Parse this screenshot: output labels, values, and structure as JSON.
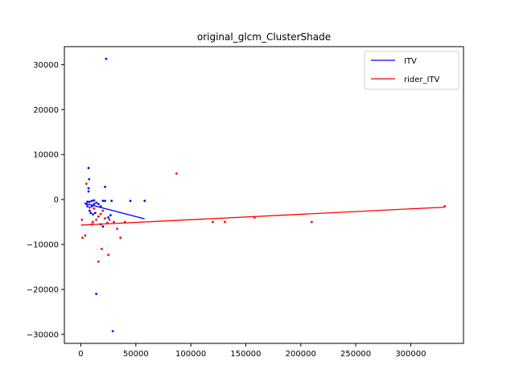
{
  "chart_data": {
    "type": "scatter",
    "title": "original_glcm_ClusterShade",
    "xlabel": "",
    "ylabel": "",
    "xlim": [
      -15000,
      348000
    ],
    "ylim": [
      -32000,
      34000
    ],
    "xticks": [
      0,
      50000,
      100000,
      150000,
      200000,
      250000,
      300000
    ],
    "yticks": [
      -30000,
      -20000,
      -10000,
      0,
      10000,
      20000,
      30000
    ],
    "grid": false,
    "legend_position": "top-right",
    "series": [
      {
        "name": "ITV",
        "color": "#0000ff",
        "points": [
          [
            23000,
            31300
          ],
          [
            7000,
            7000
          ],
          [
            7500,
            4500
          ],
          [
            7000,
            2500
          ],
          [
            7000,
            1800
          ],
          [
            22000,
            2800
          ],
          [
            5000,
            -1000
          ],
          [
            6000,
            -500
          ],
          [
            8000,
            -500
          ],
          [
            10000,
            -300
          ],
          [
            12000,
            -200
          ],
          [
            14000,
            -700
          ],
          [
            16000,
            -1000
          ],
          [
            18000,
            -1500
          ],
          [
            20000,
            -300
          ],
          [
            22000,
            -300
          ],
          [
            28000,
            -300
          ],
          [
            45000,
            -300
          ],
          [
            58000,
            -300
          ],
          [
            9000,
            -3000
          ],
          [
            11000,
            -3300
          ],
          [
            13000,
            -3000
          ],
          [
            18000,
            -5500
          ],
          [
            20000,
            -6000
          ],
          [
            25000,
            -4000
          ],
          [
            27000,
            -3500
          ],
          [
            14000,
            -21000
          ],
          [
            29000,
            -29300
          ],
          [
            10000,
            -1500
          ],
          [
            8000,
            -2500
          ],
          [
            12000,
            -1000
          ],
          [
            6000,
            -1500
          ]
        ],
        "trend": [
          [
            3000,
            -800
          ],
          [
            58000,
            -4300
          ]
        ]
      },
      {
        "name": "rider_ITV",
        "color": "#ff0000",
        "points": [
          [
            5000,
            3500
          ],
          [
            87000,
            5800
          ],
          [
            1000,
            -4500
          ],
          [
            1500,
            -8500
          ],
          [
            4000,
            -8000
          ],
          [
            11000,
            -5000
          ],
          [
            14000,
            -4500
          ],
          [
            16000,
            -3800
          ],
          [
            18000,
            -3200
          ],
          [
            20000,
            -2500
          ],
          [
            22000,
            -4200
          ],
          [
            24000,
            -5200
          ],
          [
            26000,
            -4500
          ],
          [
            33000,
            -6500
          ],
          [
            36000,
            -8500
          ],
          [
            16000,
            -13800
          ],
          [
            19000,
            -11000
          ],
          [
            25000,
            -12300
          ],
          [
            120000,
            -5000
          ],
          [
            131000,
            -5000
          ],
          [
            158000,
            -4000
          ],
          [
            210000,
            -5000
          ],
          [
            331000,
            -1500
          ],
          [
            40000,
            -5000
          ],
          [
            10000,
            -5500
          ],
          [
            30000,
            -5000
          ],
          [
            12000,
            -2000
          ],
          [
            8000,
            -1800
          ]
        ],
        "trend": [
          [
            0,
            -5700
          ],
          [
            331000,
            -1700
          ]
        ]
      }
    ]
  }
}
